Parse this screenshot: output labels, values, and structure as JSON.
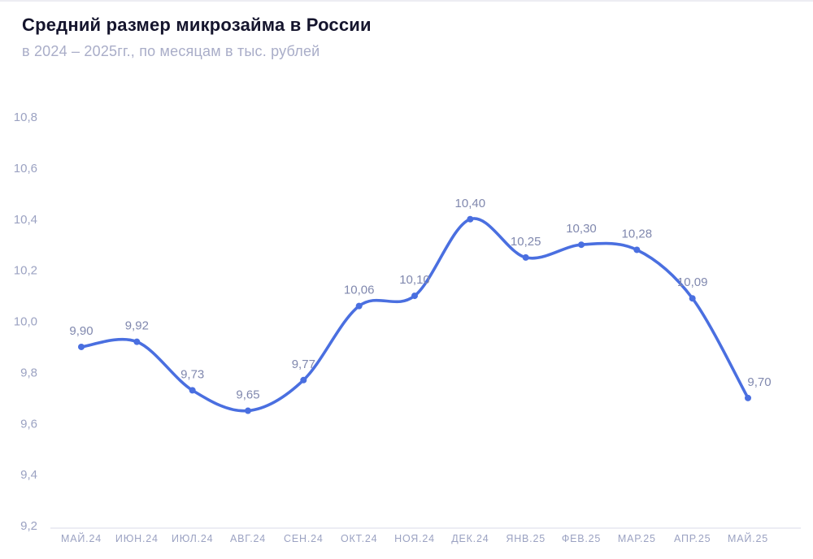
{
  "header": {
    "title": "Средний размер микрозайма в России",
    "subtitle": "в 2024 – 2025гг., по месяцам в тыс. рублей"
  },
  "chart_data": {
    "type": "line",
    "title": "Средний размер микрозайма в России",
    "subtitle": "в 2024 – 2025гг., по месяцам в тыс. рублей",
    "categories": [
      "МАЙ.24",
      "ИЮН.24",
      "ИЮЛ.24",
      "АВГ.24",
      "СЕН.24",
      "ОКТ.24",
      "НОЯ.24",
      "ДЕК.24",
      "ЯНВ.25",
      "ФЕВ.25",
      "МАР.25",
      "АПР.25",
      "МАЙ.25"
    ],
    "values": [
      9.9,
      9.92,
      9.73,
      9.65,
      9.77,
      10.06,
      10.1,
      10.4,
      10.25,
      10.3,
      10.28,
      10.09,
      9.7
    ],
    "point_labels": [
      "9,90",
      "9,92",
      "9,73",
      "9,65",
      "9,77",
      "10,06",
      "10,10",
      "10,40",
      "10,25",
      "10,30",
      "10,28",
      "10,09",
      "9,70"
    ],
    "y_tick_values": [
      10.8,
      10.6,
      10.4,
      10.2,
      10.0,
      9.8,
      9.6,
      9.4,
      9.2
    ],
    "y_tick_labels": [
      "10,8",
      "10,6",
      "10,4",
      "10,2",
      "10,0",
      "9,8",
      "9,6",
      "9,4",
      "9,2"
    ],
    "ylim": [
      9.2,
      10.8
    ],
    "grid": false,
    "legend": "none",
    "line_color": "#4a6fe0",
    "point_label_color": "#8088ae",
    "axis_label_color": "#9ba2c2",
    "axis_line_color": "#d9dbe8"
  }
}
